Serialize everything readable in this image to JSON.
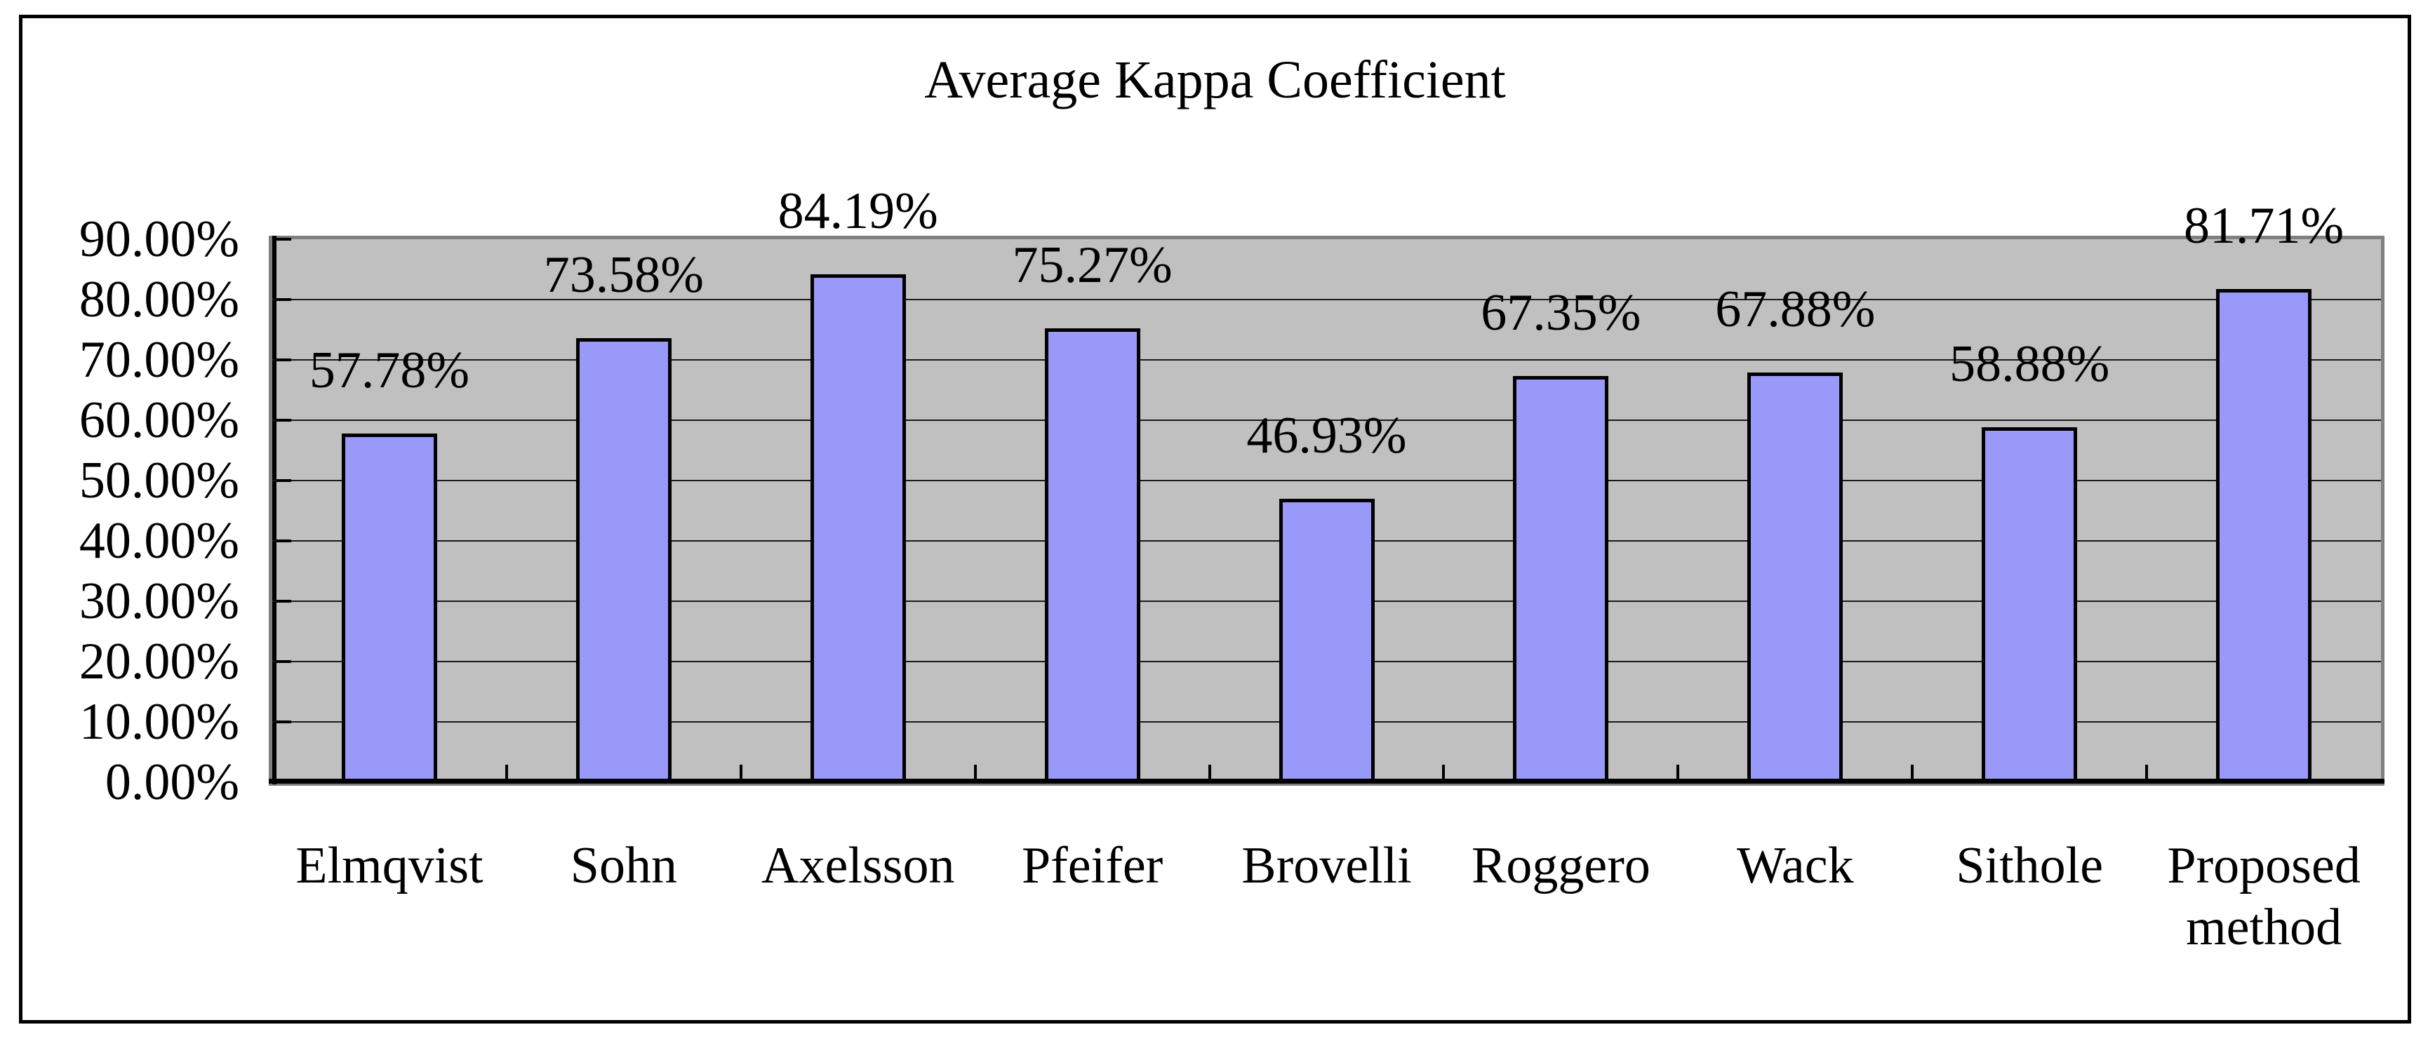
{
  "chart_data": {
    "type": "bar",
    "title": "Average Kappa Coefficient",
    "categories": [
      "Elmqvist",
      "Sohn",
      "Axelsson",
      "Pfeifer",
      "Brovelli",
      "Roggero",
      "Wack",
      "Sithole",
      "Proposed method"
    ],
    "values": [
      57.78,
      73.58,
      84.19,
      75.27,
      46.93,
      67.35,
      67.88,
      58.88,
      81.71
    ],
    "data_labels": [
      "57.78%",
      "73.58%",
      "84.19%",
      "75.27%",
      "46.93%",
      "67.35%",
      "67.88%",
      "58.88%",
      "81.71%"
    ],
    "y_tick_labels": [
      "0.00%",
      "10.00%",
      "20.00%",
      "30.00%",
      "40.00%",
      "50.00%",
      "60.00%",
      "70.00%",
      "80.00%",
      "90.00%"
    ],
    "ylim": [
      0,
      90
    ],
    "y_major_step": 10,
    "grid": true,
    "legend": "none",
    "xlabel": "",
    "ylabel": "",
    "colors": {
      "bar_fill": "#9999FA",
      "bar_border": "#000000",
      "plot_background": "#C0C0C0",
      "plot_border": "#808080",
      "gridline": "#1A1A1A",
      "axis_line": "#000000",
      "text": "#000000",
      "chart_background": "#FFFFFF"
    }
  }
}
